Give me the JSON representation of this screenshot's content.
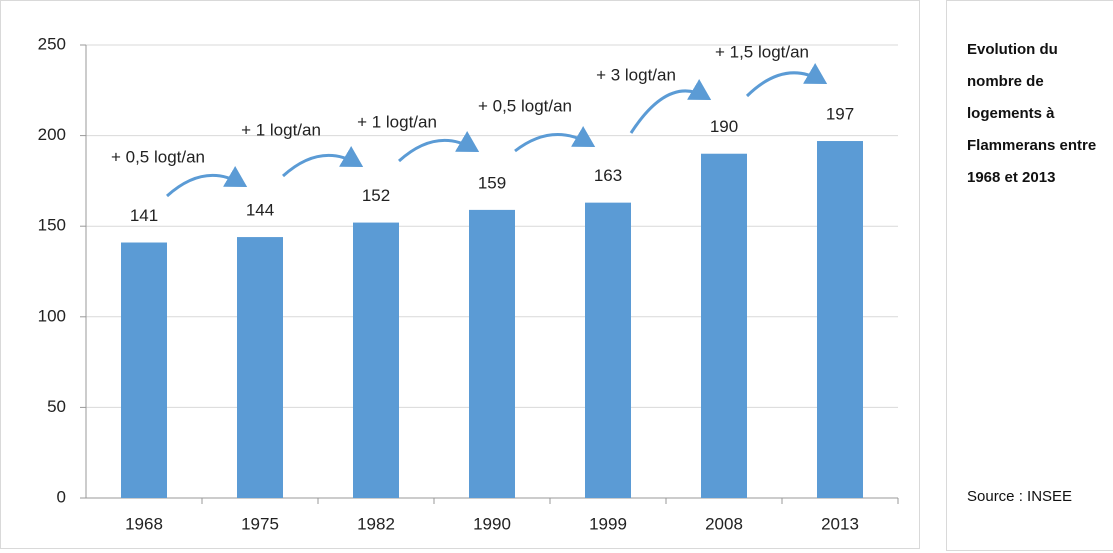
{
  "chart_data": {
    "type": "bar",
    "categories": [
      "1968",
      "1975",
      "1982",
      "1990",
      "1999",
      "2008",
      "2013"
    ],
    "values": [
      141,
      144,
      152,
      159,
      163,
      190,
      197
    ],
    "color": "#5b9bd5",
    "ylim": [
      0,
      250
    ],
    "yticks": [
      0,
      50,
      100,
      150,
      200,
      250
    ],
    "grid": true,
    "annotations": [
      "+ 0,5 logt/an",
      "+ 1 logt/an",
      "+ 1 logt/an",
      "+ 0,5 logt/an",
      "+ 3 logt/an",
      "+ 1,5 logt/an"
    ],
    "annotation_color": "#5b9bd5"
  },
  "side_panel": {
    "title": "Evolution du nombre de logements à Flammerans entre 1968 et 2013",
    "source": "Source : INSEE"
  }
}
